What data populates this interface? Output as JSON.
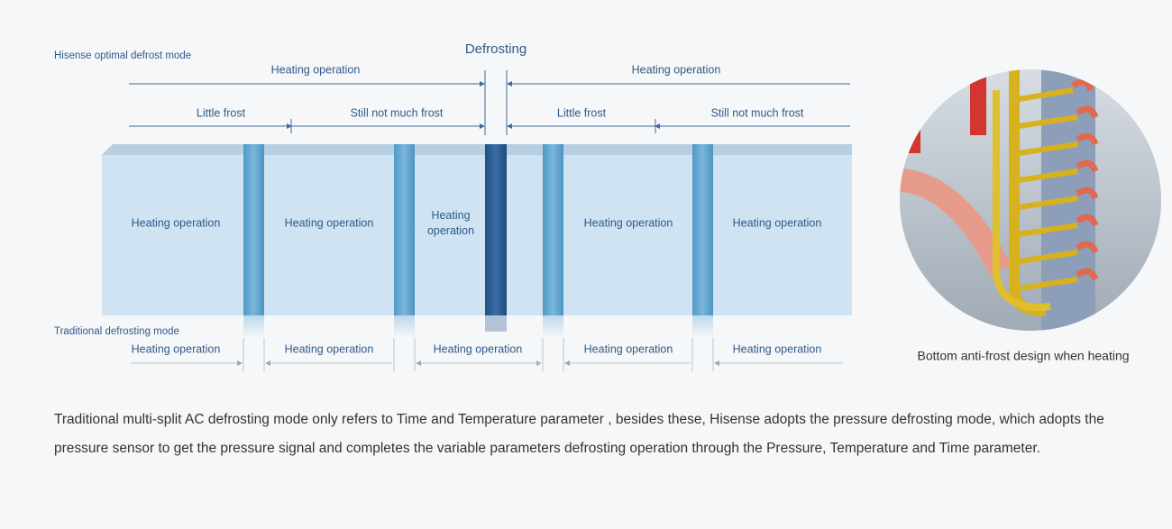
{
  "diagram": {
    "optimal_mode_label": "Hisense optimal defrost mode",
    "defrost_label": "Defrosting",
    "top_row": [
      "Heating operation",
      "Heating operation"
    ],
    "frost_row": [
      "Little frost",
      "Still not much frost",
      "Little frost",
      "Still not much frost"
    ],
    "box_labels": [
      "Heating operation",
      "Heating operation",
      "Heating\noperation",
      "Heating operation",
      "Heating operation"
    ],
    "traditional_mode_label": "Traditional defrosting mode",
    "bottom_row": [
      "Heating operation",
      "Heating operation",
      "Heating operation",
      "Heating operation",
      "Heating operation"
    ]
  },
  "image": {
    "caption": "Bottom anti-frost design when heating"
  },
  "description": "Traditional multi-split AC defrosting mode only refers to Time and Temperature parameter , besides  these, Hisense adopts the pressure defrosting mode, which adopts the pressure sensor to get the pressure signal and  completes the  variable parameters defrosting operation through the Pressure, Temperature and Time parameter."
}
